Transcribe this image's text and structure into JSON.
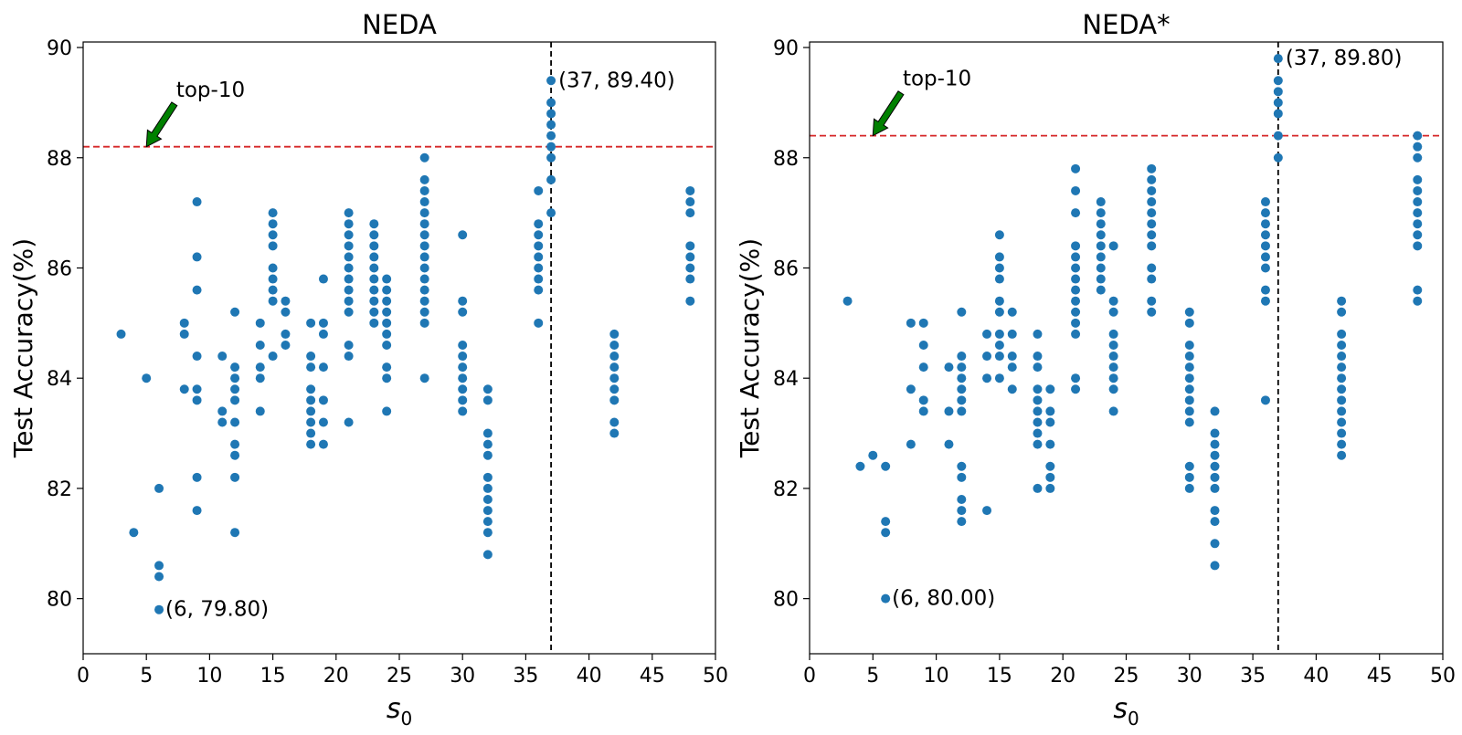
{
  "colors": {
    "points": "#1f77b4",
    "top10_line": "#d62728",
    "best_line": "#000000",
    "arrow": "#008000"
  },
  "chart_data": [
    {
      "type": "scatter",
      "title": "NEDA",
      "xlabel": "s",
      "xlabel_sub": "0",
      "ylabel": "Test Accuracy(%)",
      "xlim": [
        0,
        50
      ],
      "ylim": [
        79,
        90.1
      ],
      "xticks": [
        0,
        5,
        10,
        15,
        20,
        25,
        30,
        35,
        40,
        45,
        50
      ],
      "yticks": [
        80,
        82,
        84,
        86,
        88,
        90
      ],
      "top10_threshold": 88.2,
      "best_x": 37,
      "annotations": {
        "top10": {
          "text": "top-10",
          "target": [
            5,
            88.2
          ]
        },
        "max": {
          "text": "(37, 89.40)",
          "point": [
            37,
            89.4
          ]
        },
        "min": {
          "text": "(6, 79.80)",
          "point": [
            6,
            79.8
          ]
        }
      },
      "points": [
        [
          3,
          84.8
        ],
        [
          4,
          81.2
        ],
        [
          5,
          84.0
        ],
        [
          6,
          82.0
        ],
        [
          6,
          80.6
        ],
        [
          6,
          80.4
        ],
        [
          6,
          79.8
        ],
        [
          8,
          85.0
        ],
        [
          8,
          84.8
        ],
        [
          8,
          83.8
        ],
        [
          9,
          87.2
        ],
        [
          9,
          86.2
        ],
        [
          9,
          85.6
        ],
        [
          9,
          84.4
        ],
        [
          9,
          83.8
        ],
        [
          9,
          83.6
        ],
        [
          9,
          82.2
        ],
        [
          9,
          81.6
        ],
        [
          11,
          84.4
        ],
        [
          11,
          83.4
        ],
        [
          11,
          83.2
        ],
        [
          12,
          85.2
        ],
        [
          12,
          84.2
        ],
        [
          12,
          84.0
        ],
        [
          12,
          83.8
        ],
        [
          12,
          83.6
        ],
        [
          12,
          83.2
        ],
        [
          12,
          82.8
        ],
        [
          12,
          82.6
        ],
        [
          12,
          82.2
        ],
        [
          12,
          81.2
        ],
        [
          14,
          85.0
        ],
        [
          14,
          84.6
        ],
        [
          14,
          84.2
        ],
        [
          14,
          84.0
        ],
        [
          14,
          83.4
        ],
        [
          15,
          87.0
        ],
        [
          15,
          86.8
        ],
        [
          15,
          86.6
        ],
        [
          15,
          86.4
        ],
        [
          15,
          86.0
        ],
        [
          15,
          85.8
        ],
        [
          15,
          85.6
        ],
        [
          15,
          85.4
        ],
        [
          15,
          84.4
        ],
        [
          16,
          85.4
        ],
        [
          16,
          85.2
        ],
        [
          16,
          84.8
        ],
        [
          16,
          84.6
        ],
        [
          18,
          85.0
        ],
        [
          18,
          84.4
        ],
        [
          18,
          84.2
        ],
        [
          18,
          83.8
        ],
        [
          18,
          83.6
        ],
        [
          18,
          83.4
        ],
        [
          18,
          83.2
        ],
        [
          18,
          83.0
        ],
        [
          18,
          82.8
        ],
        [
          19,
          85.8
        ],
        [
          19,
          85.0
        ],
        [
          19,
          84.8
        ],
        [
          19,
          84.2
        ],
        [
          19,
          83.6
        ],
        [
          19,
          83.2
        ],
        [
          19,
          82.8
        ],
        [
          21,
          87.0
        ],
        [
          21,
          86.8
        ],
        [
          21,
          86.6
        ],
        [
          21,
          86.4
        ],
        [
          21,
          86.2
        ],
        [
          21,
          86.0
        ],
        [
          21,
          85.8
        ],
        [
          21,
          85.6
        ],
        [
          21,
          85.4
        ],
        [
          21,
          85.2
        ],
        [
          21,
          84.6
        ],
        [
          21,
          84.4
        ],
        [
          21,
          83.2
        ],
        [
          23,
          86.8
        ],
        [
          23,
          86.6
        ],
        [
          23,
          86.4
        ],
        [
          23,
          86.2
        ],
        [
          23,
          86.0
        ],
        [
          23,
          85.8
        ],
        [
          23,
          85.6
        ],
        [
          23,
          85.4
        ],
        [
          23,
          85.2
        ],
        [
          23,
          85.0
        ],
        [
          24,
          85.8
        ],
        [
          24,
          85.6
        ],
        [
          24,
          85.4
        ],
        [
          24,
          85.2
        ],
        [
          24,
          85.0
        ],
        [
          24,
          84.8
        ],
        [
          24,
          84.6
        ],
        [
          24,
          84.2
        ],
        [
          24,
          84.0
        ],
        [
          24,
          83.4
        ],
        [
          27,
          88.0
        ],
        [
          27,
          87.6
        ],
        [
          27,
          87.4
        ],
        [
          27,
          87.2
        ],
        [
          27,
          87.0
        ],
        [
          27,
          86.8
        ],
        [
          27,
          86.6
        ],
        [
          27,
          86.4
        ],
        [
          27,
          86.2
        ],
        [
          27,
          86.0
        ],
        [
          27,
          85.8
        ],
        [
          27,
          85.6
        ],
        [
          27,
          85.4
        ],
        [
          27,
          85.2
        ],
        [
          27,
          85.0
        ],
        [
          27,
          84.0
        ],
        [
          30,
          86.6
        ],
        [
          30,
          85.4
        ],
        [
          30,
          85.2
        ],
        [
          30,
          84.6
        ],
        [
          30,
          84.4
        ],
        [
          30,
          84.2
        ],
        [
          30,
          84.0
        ],
        [
          30,
          83.8
        ],
        [
          30,
          83.6
        ],
        [
          30,
          83.4
        ],
        [
          32,
          83.8
        ],
        [
          32,
          83.6
        ],
        [
          32,
          83.0
        ],
        [
          32,
          82.8
        ],
        [
          32,
          82.6
        ],
        [
          32,
          82.2
        ],
        [
          32,
          82.0
        ],
        [
          32,
          81.8
        ],
        [
          32,
          81.6
        ],
        [
          32,
          81.4
        ],
        [
          32,
          81.2
        ],
        [
          32,
          80.8
        ],
        [
          36,
          87.4
        ],
        [
          36,
          86.8
        ],
        [
          36,
          86.6
        ],
        [
          36,
          86.4
        ],
        [
          36,
          86.2
        ],
        [
          36,
          86.0
        ],
        [
          36,
          85.8
        ],
        [
          36,
          85.6
        ],
        [
          36,
          85.0
        ],
        [
          37,
          89.4
        ],
        [
          37,
          89.0
        ],
        [
          37,
          88.8
        ],
        [
          37,
          88.6
        ],
        [
          37,
          88.4
        ],
        [
          37,
          88.2
        ],
        [
          37,
          88.0
        ],
        [
          37,
          87.6
        ],
        [
          37,
          87.0
        ],
        [
          42,
          84.8
        ],
        [
          42,
          84.6
        ],
        [
          42,
          84.4
        ],
        [
          42,
          84.2
        ],
        [
          42,
          84.0
        ],
        [
          42,
          83.8
        ],
        [
          42,
          83.6
        ],
        [
          42,
          83.2
        ],
        [
          42,
          83.0
        ],
        [
          48,
          87.4
        ],
        [
          48,
          87.2
        ],
        [
          48,
          87.0
        ],
        [
          48,
          86.4
        ],
        [
          48,
          86.2
        ],
        [
          48,
          86.0
        ],
        [
          48,
          85.8
        ],
        [
          48,
          85.4
        ]
      ]
    },
    {
      "type": "scatter",
      "title": "NEDA*",
      "xlabel": "s",
      "xlabel_sub": "0",
      "ylabel": "Test Accuracy(%)",
      "xlim": [
        0,
        50
      ],
      "ylim": [
        79,
        90.1
      ],
      "xticks": [
        0,
        5,
        10,
        15,
        20,
        25,
        30,
        35,
        40,
        45,
        50
      ],
      "yticks": [
        80,
        82,
        84,
        86,
        88,
        90
      ],
      "top10_threshold": 88.4,
      "best_x": 37,
      "annotations": {
        "top10": {
          "text": "top-10",
          "target": [
            5,
            88.4
          ]
        },
        "max": {
          "text": "(37, 89.80)",
          "point": [
            37,
            89.8
          ]
        },
        "min": {
          "text": "(6, 80.00)",
          "point": [
            6,
            80.0
          ]
        }
      },
      "points": [
        [
          3,
          85.4
        ],
        [
          4,
          82.4
        ],
        [
          5,
          82.6
        ],
        [
          6,
          82.4
        ],
        [
          6,
          81.4
        ],
        [
          6,
          81.2
        ],
        [
          6,
          80.0
        ],
        [
          8,
          85.0
        ],
        [
          8,
          83.8
        ],
        [
          8,
          82.8
        ],
        [
          9,
          85.0
        ],
        [
          9,
          84.6
        ],
        [
          9,
          84.2
        ],
        [
          9,
          83.6
        ],
        [
          9,
          83.4
        ],
        [
          11,
          84.2
        ],
        [
          11,
          83.4
        ],
        [
          11,
          82.8
        ],
        [
          12,
          85.2
        ],
        [
          12,
          84.4
        ],
        [
          12,
          84.2
        ],
        [
          12,
          84.0
        ],
        [
          12,
          83.8
        ],
        [
          12,
          83.6
        ],
        [
          12,
          83.4
        ],
        [
          12,
          82.4
        ],
        [
          12,
          82.2
        ],
        [
          12,
          81.8
        ],
        [
          12,
          81.6
        ],
        [
          12,
          81.4
        ],
        [
          14,
          84.8
        ],
        [
          14,
          84.4
        ],
        [
          14,
          84.0
        ],
        [
          14,
          81.6
        ],
        [
          15,
          86.6
        ],
        [
          15,
          86.2
        ],
        [
          15,
          86.0
        ],
        [
          15,
          85.8
        ],
        [
          15,
          85.4
        ],
        [
          15,
          85.2
        ],
        [
          15,
          84.8
        ],
        [
          15,
          84.6
        ],
        [
          15,
          84.4
        ],
        [
          15,
          84.0
        ],
        [
          16,
          85.2
        ],
        [
          16,
          84.8
        ],
        [
          16,
          84.4
        ],
        [
          16,
          84.2
        ],
        [
          16,
          83.8
        ],
        [
          18,
          84.8
        ],
        [
          18,
          84.4
        ],
        [
          18,
          84.2
        ],
        [
          18,
          83.8
        ],
        [
          18,
          83.6
        ],
        [
          18,
          83.4
        ],
        [
          18,
          83.2
        ],
        [
          18,
          83.0
        ],
        [
          18,
          82.8
        ],
        [
          18,
          82.0
        ],
        [
          19,
          83.8
        ],
        [
          19,
          83.4
        ],
        [
          19,
          83.2
        ],
        [
          19,
          82.8
        ],
        [
          19,
          82.4
        ],
        [
          19,
          82.2
        ],
        [
          19,
          82.0
        ],
        [
          21,
          87.8
        ],
        [
          21,
          87.4
        ],
        [
          21,
          87.0
        ],
        [
          21,
          86.4
        ],
        [
          21,
          86.2
        ],
        [
          21,
          86.0
        ],
        [
          21,
          85.8
        ],
        [
          21,
          85.6
        ],
        [
          21,
          85.4
        ],
        [
          21,
          85.2
        ],
        [
          21,
          85.0
        ],
        [
          21,
          84.8
        ],
        [
          21,
          84.0
        ],
        [
          21,
          83.8
        ],
        [
          23,
          87.2
        ],
        [
          23,
          87.0
        ],
        [
          23,
          86.8
        ],
        [
          23,
          86.6
        ],
        [
          23,
          86.4
        ],
        [
          23,
          86.2
        ],
        [
          23,
          86.0
        ],
        [
          23,
          85.8
        ],
        [
          23,
          85.6
        ],
        [
          24,
          86.4
        ],
        [
          24,
          85.4
        ],
        [
          24,
          85.2
        ],
        [
          24,
          84.8
        ],
        [
          24,
          84.6
        ],
        [
          24,
          84.4
        ],
        [
          24,
          84.2
        ],
        [
          24,
          84.0
        ],
        [
          24,
          83.8
        ],
        [
          24,
          83.4
        ],
        [
          27,
          87.8
        ],
        [
          27,
          87.6
        ],
        [
          27,
          87.4
        ],
        [
          27,
          87.2
        ],
        [
          27,
          87.0
        ],
        [
          27,
          86.8
        ],
        [
          27,
          86.6
        ],
        [
          27,
          86.4
        ],
        [
          27,
          86.0
        ],
        [
          27,
          85.8
        ],
        [
          27,
          85.4
        ],
        [
          27,
          85.2
        ],
        [
          30,
          85.2
        ],
        [
          30,
          85.0
        ],
        [
          30,
          84.6
        ],
        [
          30,
          84.4
        ],
        [
          30,
          84.2
        ],
        [
          30,
          84.0
        ],
        [
          30,
          83.8
        ],
        [
          30,
          83.6
        ],
        [
          30,
          83.4
        ],
        [
          30,
          83.2
        ],
        [
          30,
          82.4
        ],
        [
          30,
          82.2
        ],
        [
          30,
          82.0
        ],
        [
          32,
          83.4
        ],
        [
          32,
          83.0
        ],
        [
          32,
          82.8
        ],
        [
          32,
          82.6
        ],
        [
          32,
          82.4
        ],
        [
          32,
          82.2
        ],
        [
          32,
          82.0
        ],
        [
          32,
          81.6
        ],
        [
          32,
          81.4
        ],
        [
          32,
          81.0
        ],
        [
          32,
          80.6
        ],
        [
          36,
          87.2
        ],
        [
          36,
          87.0
        ],
        [
          36,
          86.8
        ],
        [
          36,
          86.6
        ],
        [
          36,
          86.4
        ],
        [
          36,
          86.2
        ],
        [
          36,
          86.0
        ],
        [
          36,
          85.6
        ],
        [
          36,
          85.4
        ],
        [
          36,
          83.6
        ],
        [
          37,
          89.8
        ],
        [
          37,
          89.4
        ],
        [
          37,
          89.2
        ],
        [
          37,
          89.0
        ],
        [
          37,
          88.8
        ],
        [
          37,
          88.4
        ],
        [
          37,
          88.0
        ],
        [
          42,
          85.4
        ],
        [
          42,
          85.2
        ],
        [
          42,
          84.8
        ],
        [
          42,
          84.6
        ],
        [
          42,
          84.4
        ],
        [
          42,
          84.2
        ],
        [
          42,
          84.0
        ],
        [
          42,
          83.8
        ],
        [
          42,
          83.6
        ],
        [
          42,
          83.4
        ],
        [
          42,
          83.2
        ],
        [
          42,
          83.0
        ],
        [
          42,
          82.8
        ],
        [
          42,
          82.6
        ],
        [
          48,
          88.4
        ],
        [
          48,
          88.2
        ],
        [
          48,
          88.0
        ],
        [
          48,
          87.6
        ],
        [
          48,
          87.4
        ],
        [
          48,
          87.2
        ],
        [
          48,
          87.0
        ],
        [
          48,
          86.8
        ],
        [
          48,
          86.6
        ],
        [
          48,
          86.4
        ],
        [
          48,
          85.6
        ],
        [
          48,
          85.4
        ]
      ]
    }
  ]
}
